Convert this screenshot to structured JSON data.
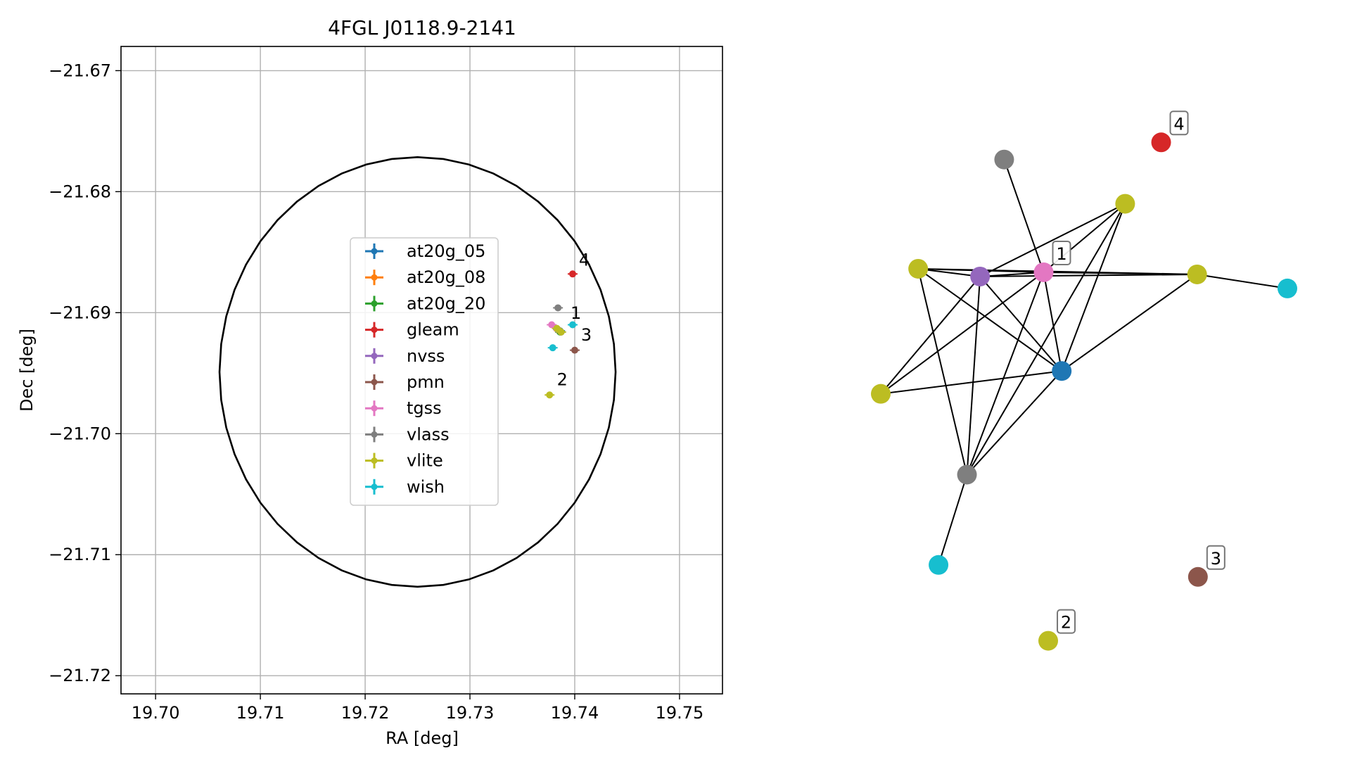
{
  "chart_data": [
    {
      "type": "scatter",
      "title": "4FGL J0118.9-2141",
      "xlabel": "RA [deg]",
      "ylabel": "Dec [deg]",
      "xlim": [
        19.6967,
        19.7541
      ],
      "ylim": [
        -21.7215,
        -21.668
      ],
      "xticks": [
        19.7,
        19.71,
        19.72,
        19.73,
        19.74,
        19.75
      ],
      "xtick_labels": [
        "19.70",
        "19.71",
        "19.72",
        "19.73",
        "19.74",
        "19.75"
      ],
      "yticks": [
        -21.67,
        -21.68,
        -21.69,
        -21.7,
        -21.71,
        -21.72
      ],
      "ytick_labels": [
        "−21.67",
        "−21.68",
        "−21.69",
        "−21.70",
        "−21.71",
        "−21.72"
      ],
      "grid": true,
      "legend_position": "center",
      "circle": {
        "center": [
          19.725,
          -21.6949
        ],
        "radius_ra": 0.0189,
        "radius_dec": 0.01775
      },
      "series": [
        {
          "name": "at20g_05",
          "color": "#1f77b4",
          "points": [
            [
              19.7386,
              -21.6915
            ]
          ]
        },
        {
          "name": "at20g_08",
          "color": "#ff7f0e",
          "points": [
            [
              19.7385,
              -21.6915
            ]
          ]
        },
        {
          "name": "at20g_20",
          "color": "#2ca02c",
          "points": [
            [
              19.7386,
              -21.6916
            ]
          ]
        },
        {
          "name": "gleam",
          "color": "#d62728",
          "points": [
            [
              19.7398,
              -21.6868
            ]
          ]
        },
        {
          "name": "nvss",
          "color": "#9467bd",
          "points": [
            [
              19.7384,
              -21.6914
            ]
          ]
        },
        {
          "name": "pmn",
          "color": "#8c564b",
          "points": [
            [
              19.74,
              -21.6931
            ]
          ]
        },
        {
          "name": "tgss",
          "color": "#e377c2",
          "points": [
            [
              19.7378,
              -21.691
            ]
          ]
        },
        {
          "name": "vlass",
          "color": "#7f7f7f",
          "points": [
            [
              19.7384,
              -21.6896
            ],
            [
              19.7387,
              -21.6916
            ]
          ]
        },
        {
          "name": "vlite",
          "color": "#bcbd22",
          "points": [
            [
              19.7376,
              -21.6968
            ],
            [
              19.7383,
              -21.6913
            ],
            [
              19.7387,
              -21.6916
            ]
          ]
        },
        {
          "name": "wish",
          "color": "#17becf",
          "points": [
            [
              19.7398,
              -21.691
            ],
            [
              19.7379,
              -21.6929
            ]
          ]
        }
      ],
      "annotations": [
        {
          "text": "4",
          "x": 19.7404,
          "y": -21.6861
        },
        {
          "text": "1",
          "x": 19.7396,
          "y": -21.6905
        },
        {
          "text": "3",
          "x": 19.7406,
          "y": -21.6923
        },
        {
          "text": "2",
          "x": 19.7383,
          "y": -21.696
        }
      ]
    },
    {
      "type": "network",
      "nodes": [
        {
          "id": "vlass_top",
          "color": "#7f7f7f",
          "pos": [
            0.3035,
            0.893
          ]
        },
        {
          "id": "red_4",
          "color": "#d62728",
          "pos": [
            0.6895,
            0.942
          ]
        },
        {
          "id": "vlite_top",
          "color": "#bcbd22",
          "pos": [
            0.601,
            0.767
          ]
        },
        {
          "id": "vlite_left",
          "color": "#bcbd22",
          "pos": [
            0.092,
            0.582
          ]
        },
        {
          "id": "nvss",
          "color": "#9467bd",
          "pos": [
            0.2442,
            0.56
          ]
        },
        {
          "id": "tgss_1",
          "color": "#e377c2",
          "pos": [
            0.4005,
            0.572
          ]
        },
        {
          "id": "vlite_right",
          "color": "#bcbd22",
          "pos": [
            0.778,
            0.566
          ]
        },
        {
          "id": "wish_right",
          "color": "#17becf",
          "pos": [
            1.0,
            0.526
          ]
        },
        {
          "id": "at20g",
          "color": "#1f77b4",
          "pos": [
            0.445,
            0.291
          ]
        },
        {
          "id": "vlite_lower",
          "color": "#bcbd22",
          "pos": [
            0.0,
            0.226
          ]
        },
        {
          "id": "vlass_lower",
          "color": "#7f7f7f",
          "pos": [
            0.212,
            -0.004
          ]
        },
        {
          "id": "wish_lower",
          "color": "#17becf",
          "pos": [
            0.142,
            -0.261
          ]
        },
        {
          "id": "pmn_3",
          "color": "#8c564b",
          "pos": [
            0.78,
            -0.295
          ]
        },
        {
          "id": "vlite_2",
          "color": "#bcbd22",
          "pos": [
            0.4118,
            -0.477
          ]
        }
      ],
      "edges": [
        [
          "vlass_top",
          "tgss_1"
        ],
        [
          "vlite_top",
          "nvss"
        ],
        [
          "vlite_top",
          "tgss_1"
        ],
        [
          "vlite_top",
          "at20g"
        ],
        [
          "vlite_top",
          "vlass_lower"
        ],
        [
          "vlite_left",
          "nvss"
        ],
        [
          "vlite_left",
          "tgss_1"
        ],
        [
          "vlite_left",
          "vlite_right"
        ],
        [
          "vlite_left",
          "at20g"
        ],
        [
          "vlite_left",
          "vlass_lower"
        ],
        [
          "nvss",
          "tgss_1"
        ],
        [
          "nvss",
          "vlite_right"
        ],
        [
          "nvss",
          "at20g"
        ],
        [
          "nvss",
          "vlite_lower"
        ],
        [
          "nvss",
          "vlass_lower"
        ],
        [
          "tgss_1",
          "vlite_right"
        ],
        [
          "tgss_1",
          "at20g"
        ],
        [
          "tgss_1",
          "vlite_lower"
        ],
        [
          "tgss_1",
          "vlass_lower"
        ],
        [
          "vlite_right",
          "wish_right"
        ],
        [
          "vlite_right",
          "at20g"
        ],
        [
          "at20g",
          "vlite_lower"
        ],
        [
          "at20g",
          "vlass_lower"
        ],
        [
          "vlass_lower",
          "wish_lower"
        ]
      ],
      "labels": [
        {
          "text": "4",
          "node": "red_4"
        },
        {
          "text": "1",
          "node": "tgss_1"
        },
        {
          "text": "3",
          "node": "pmn_3"
        },
        {
          "text": "2",
          "node": "vlite_2"
        }
      ]
    }
  ]
}
